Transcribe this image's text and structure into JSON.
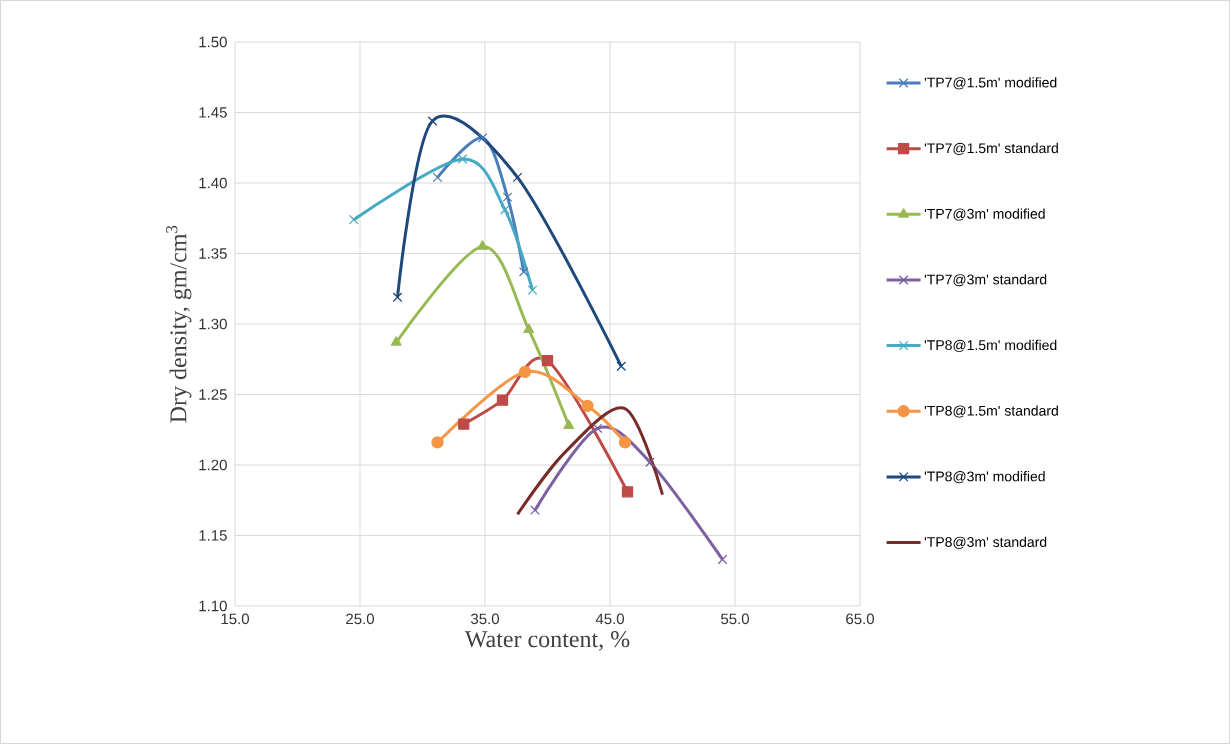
{
  "chart_data": {
    "type": "line",
    "xlabel": "Water content, %",
    "ylabel": "Dry density, gm/cm$^{3}$",
    "xlim": [
      15,
      65
    ],
    "ylim": [
      1.1,
      1.5
    ],
    "xticks": [
      {
        "value": 15,
        "label": "15.0"
      },
      {
        "value": 25,
        "label": "25.0"
      },
      {
        "value": 35,
        "label": "35.0"
      },
      {
        "value": 45,
        "label": "45.0"
      },
      {
        "value": 55,
        "label": "55.0"
      },
      {
        "value": 65,
        "label": "65.0"
      }
    ],
    "yticks": [
      {
        "value": 1.1,
        "label": "1.10"
      },
      {
        "value": 1.15,
        "label": "1.15"
      },
      {
        "value": 1.2,
        "label": "1.20"
      },
      {
        "value": 1.25,
        "label": "1.25"
      },
      {
        "value": 1.3,
        "label": "1.30"
      },
      {
        "value": 1.35,
        "label": "1.35"
      },
      {
        "value": 1.4,
        "label": "1.40"
      },
      {
        "value": 1.45,
        "label": "1.45"
      },
      {
        "value": 1.5,
        "label": "1.50"
      }
    ],
    "grid": true,
    "legend": "right",
    "series": [
      {
        "name": "'TP7@1.5m' modified",
        "color": "#4a7ebb",
        "marker": "cross",
        "x": [
          31.2,
          34.8,
          36.8,
          38.1
        ],
        "values": [
          1.404,
          1.432,
          1.39,
          1.337
        ]
      },
      {
        "name": "'TP7@1.5m' standard",
        "color": "#be4b48",
        "marker": "square",
        "x": [
          33.3,
          36.4,
          40.0,
          46.4
        ],
        "values": [
          1.229,
          1.246,
          1.274,
          1.181
        ]
      },
      {
        "name": "'TP7@3m' modified",
        "color": "#98b954",
        "marker": "triangle",
        "x": [
          27.9,
          34.8,
          38.5,
          41.7
        ],
        "values": [
          1.287,
          1.355,
          1.296,
          1.228
        ]
      },
      {
        "name": "'TP7@3m' standard",
        "color": "#7d60a0",
        "marker": "cross",
        "x": [
          39.0,
          44.0,
          48.2,
          54.0
        ],
        "values": [
          1.168,
          1.226,
          1.202,
          1.133
        ]
      },
      {
        "name": "'TP8@1.5m' modified",
        "color": "#46aac5",
        "marker": "cross",
        "x": [
          24.5,
          33.2,
          36.6,
          38.8
        ],
        "values": [
          1.374,
          1.417,
          1.381,
          1.324
        ]
      },
      {
        "name": "'TP8@1.5m' standard",
        "color": "#f69546",
        "marker": "circle",
        "x": [
          31.2,
          38.2,
          43.2,
          46.2
        ],
        "values": [
          1.216,
          1.266,
          1.242,
          1.216
        ]
      },
      {
        "name": "'TP8@3m' modified",
        "color": "#1f497d",
        "marker": "cross",
        "x": [
          28.0,
          30.8,
          37.6,
          45.9
        ],
        "values": [
          1.319,
          1.444,
          1.404,
          1.27
        ]
      },
      {
        "name": "'TP8@3m' standard",
        "color": "#772c2a",
        "marker": "none",
        "x": [
          37.6,
          41.4,
          46.2,
          49.2
        ],
        "values": [
          1.165,
          1.209,
          1.24,
          1.179
        ]
      }
    ]
  }
}
